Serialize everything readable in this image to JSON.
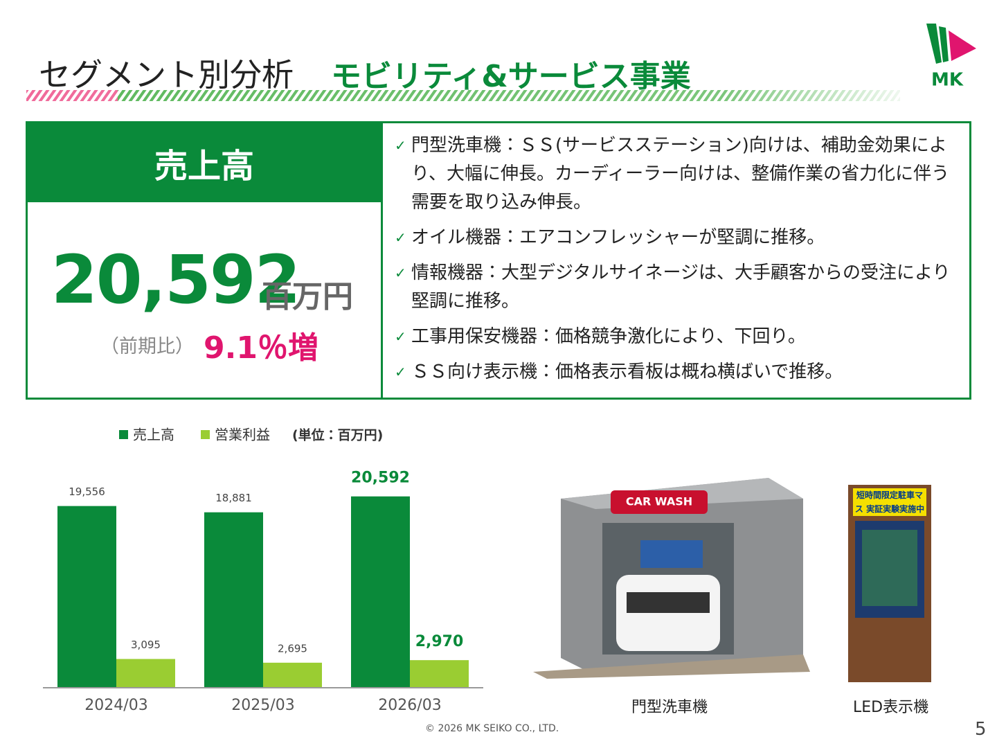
{
  "header": {
    "title": "セグメント別分析",
    "subtitle": "モビリティ&サービス事業",
    "logo": "MK"
  },
  "summary": {
    "label": "売上高",
    "value": "20,592",
    "unit": "百万円",
    "compare_label": "（前期比）",
    "change": "9.1％増"
  },
  "bullet_marker": "✓",
  "bullets": [
    "門型洗車機：ＳＳ(サービスステーション)向けは、補助金効果により、大幅に伸長。カーディーラー向けは、整備作業の省力化に伴う需要を取り込み伸長。",
    "オイル機器：エアコンフレッシャーが堅調に推移。",
    "情報機器：大型デジタルサイネージは、大手顧客からの受注により堅調に推移。",
    "工事用保安機器：価格競争激化により、下回り。",
    "ＳＳ向け表示機：価格表示看板は概ね横ばいで推移。"
  ],
  "chart_data": {
    "type": "bar",
    "unit_note": "(単位：百万円)",
    "categories": [
      "2024/03",
      "2025/03",
      "2026/03"
    ],
    "series": [
      {
        "name": "売上高",
        "color": "#0a8a3a",
        "values": [
          19556,
          18881,
          20592
        ],
        "value_labels": [
          "19,556",
          "18,881",
          "20,592"
        ]
      },
      {
        "name": "営業利益",
        "color": "#9acd32",
        "values": [
          3095,
          2695,
          2970
        ],
        "value_labels": [
          "3,095",
          "2,695",
          "2,970"
        ]
      }
    ],
    "ylim": [
      0,
      24000
    ]
  },
  "images": [
    {
      "caption": "門型洗車機",
      "sign_text": "CAR WASH"
    },
    {
      "caption": "LED表示機",
      "sign_text": "短時間限定駐車マス 実証実験実施中"
    }
  ],
  "footer": {
    "copyright": "© 2026 MK SEIKO CO., LTD.",
    "page": "5"
  }
}
